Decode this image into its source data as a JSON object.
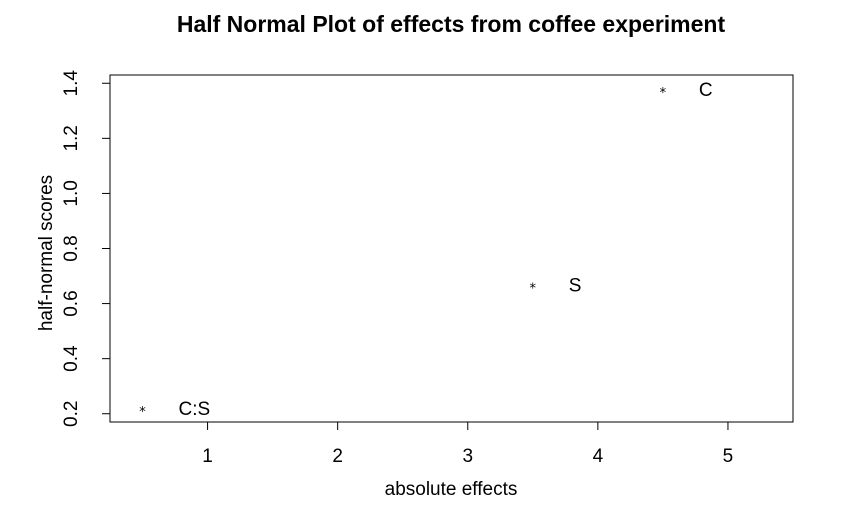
{
  "chart_data": {
    "type": "scatter",
    "title": "Half Normal Plot of effects from coffee experiment",
    "xlabel": "absolute effects",
    "ylabel": "half-normal scores",
    "xlim": [
      0.25,
      5.5
    ],
    "ylim": [
      0.17,
      1.43
    ],
    "xticks": [
      1,
      2,
      3,
      4,
      5
    ],
    "yticks": [
      0.2,
      0.4,
      0.6,
      0.8,
      1.0,
      1.2,
      1.4
    ],
    "xtick_labels": [
      "1",
      "2",
      "3",
      "4",
      "5"
    ],
    "ytick_labels": [
      "0.2",
      "0.4",
      "0.6",
      "0.8",
      "1.0",
      "1.2",
      "1.4"
    ],
    "marker": "*",
    "grid": false,
    "points": [
      {
        "x": 0.5,
        "y": 0.22,
        "label": "C:S"
      },
      {
        "x": 3.5,
        "y": 0.67,
        "label": "S"
      },
      {
        "x": 4.5,
        "y": 1.38,
        "label": "C"
      }
    ]
  }
}
